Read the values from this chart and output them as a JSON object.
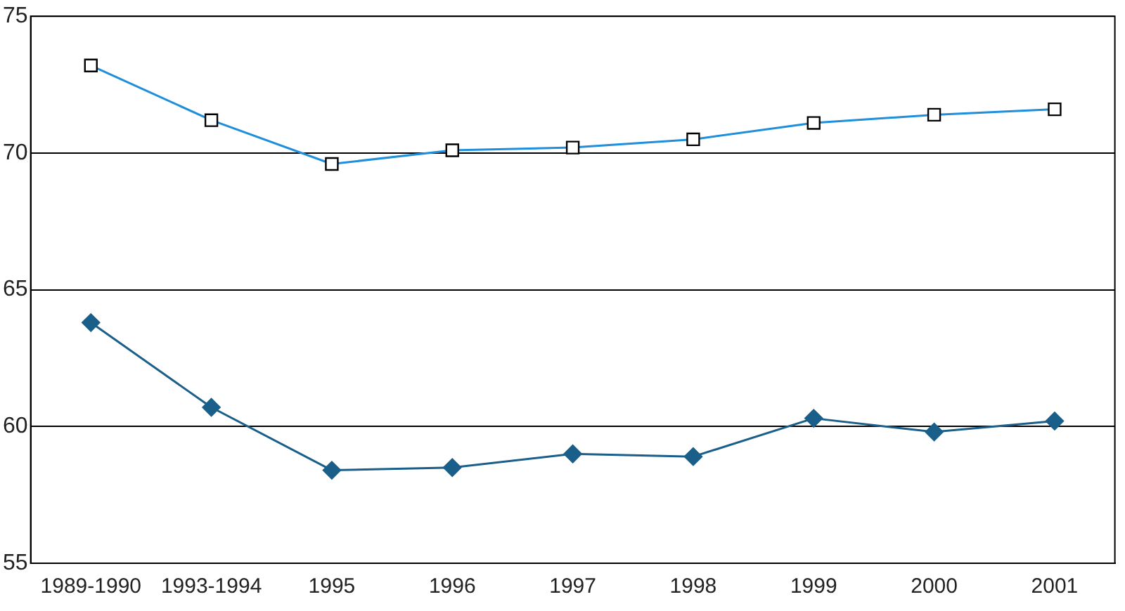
{
  "chart_data": {
    "type": "line",
    "categories": [
      "1989-1990",
      "1993-1994",
      "1995",
      "1996",
      "1997",
      "1998",
      "1999",
      "2000",
      "2001"
    ],
    "series": [
      {
        "color": "#1f8fdc",
        "marker": "square",
        "values": [
          73.2,
          71.2,
          69.6,
          70.1,
          70.2,
          70.5,
          71.1,
          71.4,
          71.6
        ]
      },
      {
        "color": "#1a5f8a",
        "marker": "diamond",
        "values": [
          63.8,
          60.7,
          58.4,
          58.5,
          59.0,
          58.9,
          60.3,
          59.8,
          60.2
        ]
      }
    ],
    "ylim": [
      55,
      75
    ],
    "yticks": [
      55,
      60,
      65,
      70,
      75
    ],
    "grid": "y",
    "legend": false
  }
}
